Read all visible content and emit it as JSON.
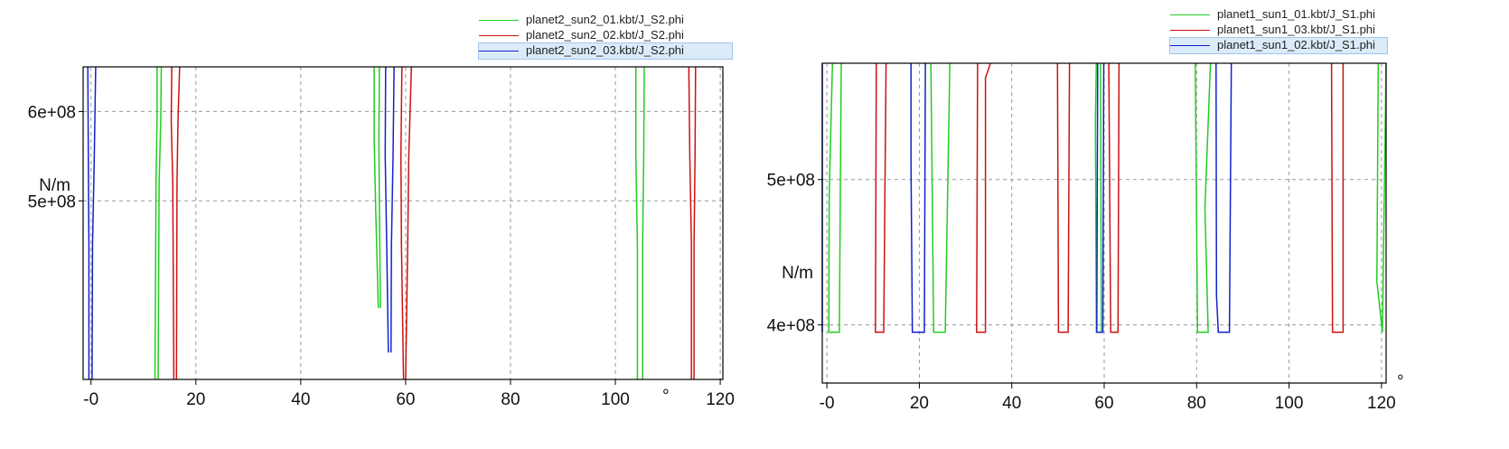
{
  "chart_data": [
    {
      "type": "line",
      "ylabel": "N/m",
      "xunit": "°",
      "xlim": [
        -1.5,
        120.5
      ],
      "ylim": [
        300000000.0,
        650000000.0
      ],
      "xticks": [
        "-0",
        "20",
        "40",
        "60",
        "80",
        "100",
        "120"
      ],
      "xtick_values": [
        0,
        20,
        40,
        60,
        80,
        100,
        120
      ],
      "yticks": [
        "6e+08",
        "5e+08"
      ],
      "ytick_values": [
        600000000.0,
        500000000.0
      ],
      "grid": true,
      "legend_position": "top-right",
      "series": [
        {
          "name": "planet2_sun2_01.kbt/J_S2.phi",
          "color": "#22cc22",
          "segments": [
            [
              [
                12.6,
                650000000.0
              ],
              [
                12.6,
                590000000.0
              ],
              [
                12.4,
                520000000.0
              ],
              [
                12.2,
                300000000.0
              ]
            ],
            [
              [
                13.4,
                650000000.0
              ],
              [
                13.3,
                590000000.0
              ],
              [
                13.0,
                520000000.0
              ],
              [
                12.8,
                300000000.0
              ]
            ],
            [
              [
                54.0,
                650000000.0
              ],
              [
                54.0,
                570000000.0
              ],
              [
                54.3,
                490000000.0
              ],
              [
                54.8,
                380000000.0
              ]
            ],
            [
              [
                55.0,
                650000000.0
              ],
              [
                54.9,
                570000000.0
              ],
              [
                55.0,
                490000000.0
              ],
              [
                55.2,
                380000000.0
              ]
            ],
            [
              [
                103.9,
                650000000.0
              ],
              [
                103.9,
                550000000.0
              ],
              [
                104.2,
                450000000.0
              ],
              [
                104.2,
                300000000.0
              ]
            ],
            [
              [
                105.5,
                650000000.0
              ],
              [
                105.4,
                550000000.0
              ],
              [
                105.2,
                450000000.0
              ],
              [
                105.2,
                300000000.0
              ]
            ]
          ]
        },
        {
          "name": "planet2_sun2_02.kbt/J_S2.phi",
          "color": "#cc1111",
          "segments": [
            [
              [
                15.4,
                650000000.0
              ],
              [
                15.3,
                590000000.0
              ],
              [
                15.6,
                520000000.0
              ],
              [
                15.8,
                300000000.0
              ]
            ],
            [
              [
                16.9,
                650000000.0
              ],
              [
                16.6,
                590000000.0
              ],
              [
                16.4,
                520000000.0
              ],
              [
                16.3,
                300000000.0
              ]
            ],
            [
              [
                59.3,
                650000000.0
              ],
              [
                59.1,
                550000000.0
              ],
              [
                59.2,
                450000000.0
              ],
              [
                59.6,
                300000000.0
              ]
            ],
            [
              [
                61.1,
                650000000.0
              ],
              [
                60.6,
                550000000.0
              ],
              [
                60.4,
                450000000.0
              ],
              [
                60.0,
                300000000.0
              ]
            ],
            [
              [
                114.0,
                650000000.0
              ],
              [
                114.2,
                550000000.0
              ],
              [
                114.5,
                450000000.0
              ],
              [
                114.5,
                300000000.0
              ]
            ],
            [
              [
                115.3,
                650000000.0
              ],
              [
                115.2,
                550000000.0
              ],
              [
                115.0,
                450000000.0
              ],
              [
                115.0,
                300000000.0
              ]
            ]
          ]
        },
        {
          "name": "planet2_sun2_03.kbt/J_S2.phi",
          "color": "#1122cc",
          "segments": [
            [
              [
                -0.6,
                650000000.0
              ],
              [
                -0.5,
                540000000.0
              ],
              [
                -0.4,
                450000000.0
              ],
              [
                -0.4,
                300000000.0
              ]
            ],
            [
              [
                0.9,
                650000000.0
              ],
              [
                0.6,
                540000000.0
              ],
              [
                0.3,
                450000000.0
              ],
              [
                0.2,
                300000000.0
              ]
            ],
            [
              [
                56.2,
                650000000.0
              ],
              [
                56.1,
                550000000.0
              ],
              [
                56.4,
                450000000.0
              ],
              [
                56.7,
                330000000.0
              ]
            ],
            [
              [
                57.8,
                650000000.0
              ],
              [
                57.6,
                550000000.0
              ],
              [
                57.3,
                450000000.0
              ],
              [
                57.2,
                330000000.0
              ]
            ]
          ]
        }
      ]
    },
    {
      "type": "line",
      "ylabel": "N/m",
      "xunit": "°",
      "xlim": [
        -1.0,
        121.0
      ],
      "ylim": [
        360000000.0,
        580000000.0
      ],
      "xticks": [
        "-0",
        "20",
        "40",
        "60",
        "80",
        "100",
        "120"
      ],
      "xtick_values": [
        0,
        20,
        40,
        60,
        80,
        100,
        120
      ],
      "yticks": [
        "5e+08",
        "4e+08"
      ],
      "ytick_values": [
        500000000.0,
        400000000.0
      ],
      "grid": true,
      "legend_position": "top-right",
      "series": [
        {
          "name": "planet1_sun1_01.kbt/J_S1.phi",
          "color": "#22cc22",
          "segments": [
            [
              [
                1.2,
                580000000.0
              ],
              [
                0.5,
                490000000.0
              ],
              [
                0.4,
                395000000.0
              ],
              [
                2.7,
                395000000.0
              ],
              [
                3.1,
                580000000.0
              ]
            ],
            [
              [
                22.5,
                580000000.0
              ],
              [
                23.1,
                395000000.0
              ],
              [
                25.6,
                395000000.0
              ],
              [
                26.6,
                580000000.0
              ]
            ],
            [
              [
                58.3,
                580000000.0
              ],
              [
                58.1,
                540000000.0
              ],
              [
                58.3,
                395000000.0
              ],
              [
                59.4,
                395000000.0
              ],
              [
                59.2,
                580000000.0
              ]
            ],
            [
              [
                83.0,
                580000000.0
              ],
              [
                81.8,
                480000000.0
              ],
              [
                82.5,
                395000000.0
              ],
              [
                80.2,
                395000000.0
              ],
              [
                79.7,
                580000000.0
              ]
            ],
            [
              [
                119.3,
                580000000.0
              ],
              [
                119.0,
                430000000.0
              ],
              [
                120.2,
                395000000.0
              ],
              [
                121.0,
                580000000.0
              ]
            ]
          ]
        },
        {
          "name": "planet1_sun1_03.kbt/J_S1.phi",
          "color": "#cc1111",
          "segments": [
            [
              [
                10.7,
                580000000.0
              ],
              [
                10.5,
                395000000.0
              ],
              [
                12.3,
                395000000.0
              ],
              [
                12.8,
                580000000.0
              ]
            ],
            [
              [
                32.6,
                580000000.0
              ],
              [
                32.4,
                395000000.0
              ],
              [
                34.3,
                395000000.0
              ],
              [
                34.3,
                570000000.0
              ],
              [
                35.4,
                580000000.0
              ]
            ],
            [
              [
                49.9,
                580000000.0
              ],
              [
                50.1,
                395000000.0
              ],
              [
                52.2,
                395000000.0
              ],
              [
                52.5,
                580000000.0
              ]
            ],
            [
              [
                61.0,
                580000000.0
              ],
              [
                61.4,
                395000000.0
              ],
              [
                63.0,
                395000000.0
              ],
              [
                63.2,
                580000000.0
              ]
            ],
            [
              [
                109.2,
                580000000.0
              ],
              [
                109.4,
                395000000.0
              ],
              [
                111.7,
                395000000.0
              ],
              [
                111.7,
                580000000.0
              ]
            ]
          ]
        },
        {
          "name": "planet1_sun1_02.kbt/J_S1.phi",
          "color": "#1122cc",
          "segments": [
            [
              [
                -1.0,
                580000000.0
              ],
              [
                -1.0,
                395000000.0
              ]
            ],
            [
              [
                18.2,
                580000000.0
              ],
              [
                18.2,
                510000000.0
              ],
              [
                18.5,
                395000000.0
              ],
              [
                21.1,
                395000000.0
              ],
              [
                21.3,
                580000000.0
              ]
            ],
            [
              [
                58.6,
                580000000.0
              ],
              [
                58.4,
                395000000.0
              ],
              [
                59.7,
                395000000.0
              ],
              [
                59.9,
                580000000.0
              ]
            ],
            [
              [
                84.2,
                580000000.0
              ],
              [
                84.3,
                420000000.0
              ],
              [
                84.7,
                395000000.0
              ],
              [
                87.1,
                395000000.0
              ],
              [
                87.5,
                580000000.0
              ]
            ]
          ]
        }
      ]
    }
  ]
}
